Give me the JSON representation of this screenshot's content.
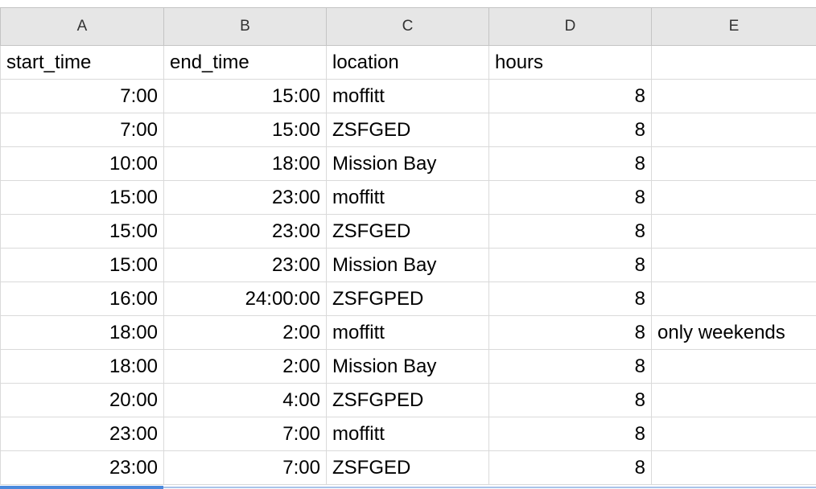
{
  "columns": [
    "A",
    "B",
    "C",
    "D",
    "E"
  ],
  "header": {
    "start_time": "start_time",
    "end_time": "end_time",
    "location": "location",
    "hours": "hours",
    "notes": ""
  },
  "rows": [
    {
      "start": "7:00",
      "end": "15:00",
      "location": "moffitt",
      "hours": "8",
      "note": ""
    },
    {
      "start": "7:00",
      "end": "15:00",
      "location": "ZSFGED",
      "hours": "8",
      "note": ""
    },
    {
      "start": "10:00",
      "end": "18:00",
      "location": "Mission Bay",
      "hours": "8",
      "note": ""
    },
    {
      "start": "15:00",
      "end": "23:00",
      "location": "moffitt",
      "hours": "8",
      "note": ""
    },
    {
      "start": "15:00",
      "end": "23:00",
      "location": "ZSFGED",
      "hours": "8",
      "note": ""
    },
    {
      "start": "15:00",
      "end": "23:00",
      "location": "Mission Bay",
      "hours": "8",
      "note": ""
    },
    {
      "start": "16:00",
      "end": "24:00:00",
      "location": "ZSFGPED",
      "hours": "8",
      "note": ""
    },
    {
      "start": "18:00",
      "end": "2:00",
      "location": "moffitt",
      "hours": "8",
      "note": "only weekends"
    },
    {
      "start": "18:00",
      "end": "2:00",
      "location": "Mission Bay",
      "hours": "8",
      "note": ""
    },
    {
      "start": "20:00",
      "end": "4:00",
      "location": "ZSFGPED",
      "hours": "8",
      "note": ""
    },
    {
      "start": "23:00",
      "end": "7:00",
      "location": "moffitt",
      "hours": "8",
      "note": ""
    },
    {
      "start": "23:00",
      "end": "7:00",
      "location": "ZSFGED",
      "hours": "8",
      "note": ""
    }
  ],
  "colors": {
    "header_bg": "#e6e6e6",
    "gridline": "#dadada",
    "selection": "#4a89dc"
  }
}
